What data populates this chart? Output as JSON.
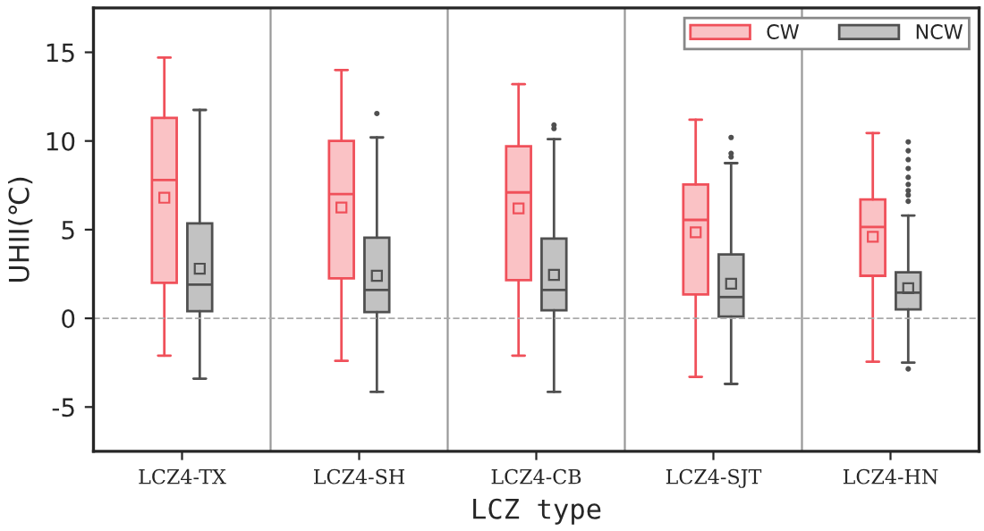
{
  "chart_data": {
    "type": "box",
    "xlabel": "LCZ type",
    "ylabel": "UHII(℃)",
    "categories": [
      "LCZ4-TX",
      "LCZ4-SH",
      "LCZ4-CB",
      "LCZ4-SJT",
      "LCZ4-HN"
    ],
    "series": [
      {
        "name": "CW",
        "color": "#f0505a",
        "boxes": [
          {
            "low": -2.1,
            "q1": 2.0,
            "median": 7.8,
            "q3": 11.3,
            "high": 14.7,
            "mean": 6.8
          },
          {
            "low": -2.4,
            "q1": 2.25,
            "median": 7.0,
            "q3": 10.0,
            "high": 14.0,
            "mean": 6.25
          },
          {
            "low": -2.1,
            "q1": 2.15,
            "median": 7.1,
            "q3": 9.7,
            "high": 13.2,
            "mean": 6.2
          },
          {
            "low": -3.3,
            "q1": 1.35,
            "median": 5.55,
            "q3": 7.55,
            "high": 11.2,
            "mean": 4.85
          },
          {
            "low": -2.45,
            "q1": 2.4,
            "median": 5.15,
            "q3": 6.7,
            "high": 10.45,
            "mean": 4.6
          }
        ]
      },
      {
        "name": "NCW",
        "color": "#505050",
        "boxes": [
          {
            "low": -3.4,
            "q1": 0.4,
            "median": 1.9,
            "q3": 5.35,
            "high": 11.75,
            "mean": 2.8
          },
          {
            "low": -4.15,
            "q1": 0.35,
            "median": 1.6,
            "q3": 4.55,
            "high": 10.2,
            "mean": 2.4,
            "outliers": [
              11.55
            ]
          },
          {
            "low": -4.15,
            "q1": 0.45,
            "median": 1.6,
            "q3": 4.5,
            "high": 10.1,
            "mean": 2.45,
            "outliers": [
              10.9,
              10.7
            ]
          },
          {
            "low": -3.7,
            "q1": 0.1,
            "median": 1.2,
            "q3": 3.6,
            "high": 8.75,
            "mean": 1.95,
            "outliers": [
              10.2,
              9.3,
              9.1
            ]
          },
          {
            "low": -2.5,
            "q1": 0.5,
            "median": 1.45,
            "q3": 2.6,
            "high": 5.8,
            "mean": 1.7,
            "outliers": [
              9.95,
              9.45,
              8.95,
              8.45,
              7.95,
              7.55,
              7.2,
              6.95,
              6.6,
              -2.85
            ]
          }
        ]
      }
    ],
    "ylim": [
      -7.5,
      17.5
    ],
    "yticks": [
      -5,
      0,
      5,
      10,
      15
    ],
    "ref_lines": [
      {
        "axis": "y",
        "value": 0,
        "color": "#aaaaaa",
        "line_style": "dashed"
      }
    ],
    "grid": false,
    "legend": "top right"
  }
}
